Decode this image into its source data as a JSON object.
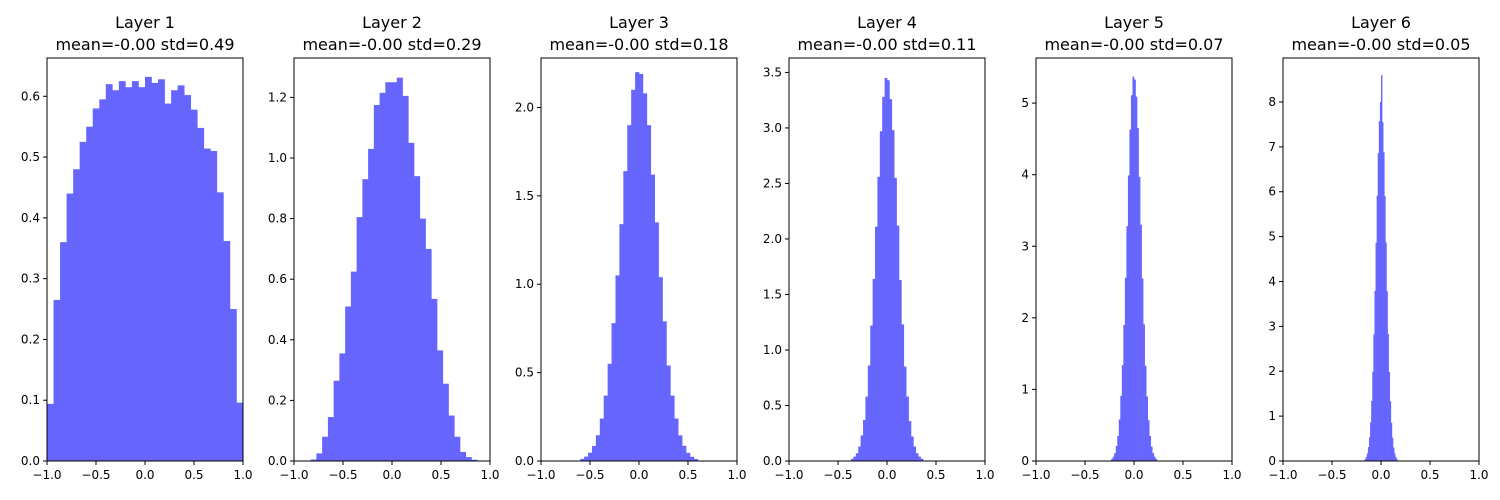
{
  "chart_data": [
    {
      "type": "bar",
      "title": "Layer 1",
      "subtitle": "mean=-0.00 std=0.49",
      "bin_range": [
        -1.0,
        1.0
      ],
      "values": [
        0.094,
        0.265,
        0.36,
        0.44,
        0.48,
        0.525,
        0.55,
        0.58,
        0.595,
        0.62,
        0.61,
        0.625,
        0.615,
        0.625,
        0.615,
        0.632,
        0.622,
        0.628,
        0.588,
        0.61,
        0.618,
        0.602,
        0.578,
        0.548,
        0.514,
        0.51,
        0.442,
        0.362,
        0.25,
        0.096
      ],
      "xlim": [
        -1.0,
        1.0
      ],
      "ylim": [
        0,
        0.663
      ],
      "xticks": [
        "−1.0",
        "−0.5",
        "0.0",
        "0.5",
        "1.0"
      ],
      "xtick_values": [
        -1,
        -0.5,
        0,
        0.5,
        1
      ],
      "yticks": [
        "0.0",
        "0.1",
        "0.2",
        "0.3",
        "0.4",
        "0.5",
        "0.6"
      ],
      "ytick_values": [
        0,
        0.1,
        0.2,
        0.3,
        0.4,
        0.5,
        0.6
      ]
    },
    {
      "type": "bar",
      "title": "Layer 2",
      "subtitle": "mean=-0.00 std=0.29",
      "bin_range": [
        -0.83,
        0.87
      ],
      "values": [
        0.005,
        0.025,
        0.08,
        0.145,
        0.265,
        0.355,
        0.51,
        0.625,
        0.805,
        0.93,
        1.03,
        1.175,
        1.215,
        1.25,
        1.25,
        1.265,
        1.205,
        1.05,
        0.94,
        0.8,
        0.7,
        0.535,
        0.365,
        0.255,
        0.15,
        0.08,
        0.03,
        0.013,
        0.004
      ],
      "xlim": [
        -1.0,
        1.0
      ],
      "ylim": [
        0,
        1.33
      ],
      "xticks": [
        "−1.0",
        "−0.5",
        "0.0",
        "0.5",
        "1.0"
      ],
      "xtick_values": [
        -1,
        -0.5,
        0,
        0.5,
        1
      ],
      "yticks": [
        "0.0",
        "0.2",
        "0.4",
        "0.6",
        "0.8",
        "1.0",
        "1.2"
      ],
      "ytick_values": [
        0,
        0.2,
        0.4,
        0.6,
        0.8,
        1.0,
        1.2
      ]
    },
    {
      "type": "bar",
      "title": "Layer 3",
      "subtitle": "mean=-0.00 std=0.18",
      "bin_range": [
        -0.6,
        0.6
      ],
      "values": [
        0.012,
        0.025,
        0.047,
        0.085,
        0.146,
        0.24,
        0.37,
        0.55,
        0.78,
        1.05,
        1.34,
        1.64,
        1.9,
        2.1,
        2.2,
        2.19,
        2.08,
        1.9,
        1.62,
        1.35,
        1.04,
        0.79,
        0.54,
        0.37,
        0.24,
        0.145,
        0.086,
        0.046,
        0.024,
        0.011
      ],
      "xlim": [
        -1.0,
        1.0
      ],
      "ylim": [
        0,
        2.28
      ],
      "xticks": [
        "−1.0",
        "−0.5",
        "0.0",
        "0.5",
        "1.0"
      ],
      "xtick_values": [
        -1,
        -0.5,
        0,
        0.5,
        1
      ],
      "yticks": [
        "0.0",
        "0.5",
        "1.0",
        "1.5",
        "2.0"
      ],
      "ytick_values": [
        0,
        0.5,
        1.0,
        1.5,
        2.0
      ]
    },
    {
      "type": "bar",
      "title": "Layer 4",
      "subtitle": "mean=-0.00 std=0.11",
      "bin_range": [
        -0.367,
        0.367
      ],
      "values": [
        0.02,
        0.04,
        0.07,
        0.13,
        0.23,
        0.37,
        0.58,
        0.86,
        1.22,
        1.64,
        2.11,
        2.56,
        2.97,
        3.28,
        3.45,
        3.43,
        3.26,
        2.98,
        2.55,
        2.12,
        1.63,
        1.23,
        0.85,
        0.58,
        0.36,
        0.22,
        0.13,
        0.07,
        0.04,
        0.02
      ],
      "xlim": [
        -1.0,
        1.0
      ],
      "ylim": [
        0,
        3.63
      ],
      "xticks": [
        "−1.0",
        "−0.5",
        "0.0",
        "0.5",
        "1.0"
      ],
      "xtick_values": [
        -1,
        -0.5,
        0,
        0.5,
        1
      ],
      "yticks": [
        "0.0",
        "0.5",
        "1.0",
        "1.5",
        "2.0",
        "2.5",
        "3.0",
        "3.5"
      ],
      "ytick_values": [
        0,
        0.5,
        1.0,
        1.5,
        2.0,
        2.5,
        3.0,
        3.5
      ]
    },
    {
      "type": "bar",
      "title": "Layer 5",
      "subtitle": "mean=-0.00 std=0.07",
      "bin_range": [
        -0.233,
        0.233
      ],
      "values": [
        0.03,
        0.06,
        0.11,
        0.21,
        0.35,
        0.58,
        0.91,
        1.34,
        1.9,
        2.56,
        3.28,
        3.99,
        4.63,
        5.11,
        5.37,
        5.33,
        5.09,
        4.65,
        3.97,
        3.3,
        2.55,
        1.91,
        1.33,
        0.9,
        0.57,
        0.35,
        0.2,
        0.11,
        0.06,
        0.03
      ],
      "xlim": [
        -1.0,
        1.0
      ],
      "ylim": [
        0,
        5.63
      ],
      "xticks": [
        "−1.0",
        "−0.5",
        "0.0",
        "0.5",
        "1.0"
      ],
      "xtick_values": [
        -1,
        -0.5,
        0,
        0.5,
        1
      ],
      "yticks": [
        "0",
        "1",
        "2",
        "3",
        "4",
        "5"
      ],
      "ytick_values": [
        0,
        1,
        2,
        3,
        4,
        5
      ]
    },
    {
      "type": "bar",
      "title": "Layer 6",
      "subtitle": "mean=-0.00 std=0.05",
      "bin_range": [
        -0.167,
        0.167
      ],
      "values": [
        0.04,
        0.09,
        0.17,
        0.31,
        0.53,
        0.86,
        1.34,
        1.99,
        2.82,
        3.79,
        4.86,
        5.91,
        6.86,
        7.57,
        8.0,
        8.6,
        7.55,
        6.88,
        5.9,
        4.87,
        3.78,
        2.83,
        1.98,
        1.33,
        0.85,
        0.52,
        0.3,
        0.17,
        0.09,
        0.04
      ],
      "xlim": [
        -1.0,
        1.0
      ],
      "ylim": [
        0,
        8.98
      ],
      "xticks": [
        "−1.0",
        "−0.5",
        "0.0",
        "0.5",
        "1.0"
      ],
      "xtick_values": [
        -1,
        -0.5,
        0,
        0.5,
        1
      ],
      "yticks": [
        "0",
        "1",
        "2",
        "3",
        "4",
        "5",
        "6",
        "7",
        "8"
      ],
      "ytick_values": [
        0,
        1,
        2,
        3,
        4,
        5,
        6,
        7,
        8
      ]
    }
  ],
  "colors": {
    "bar": "#6666ff",
    "axis": "#000000"
  }
}
